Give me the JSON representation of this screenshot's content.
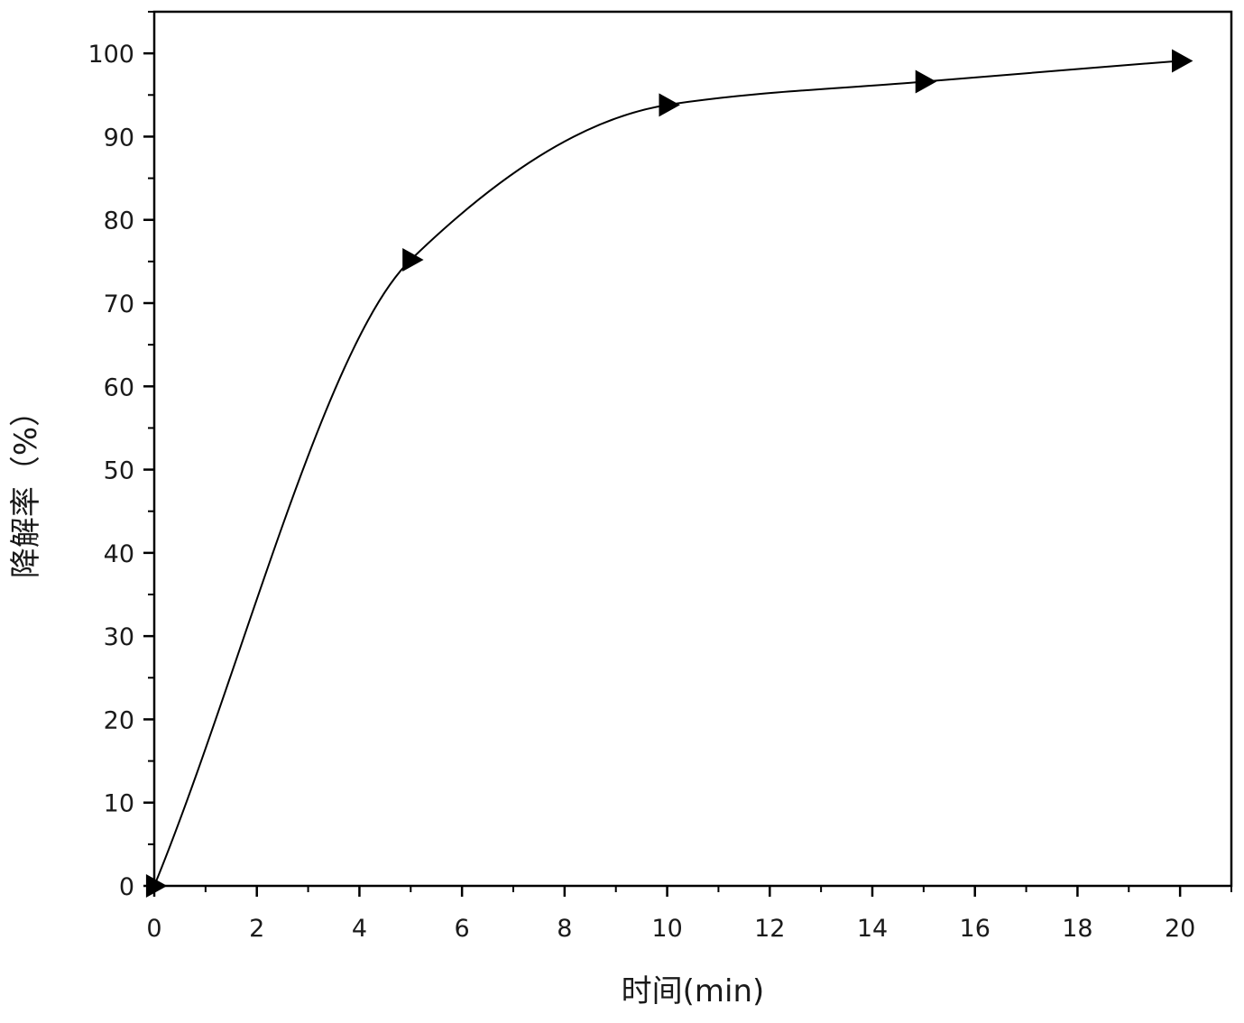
{
  "chart_data": {
    "type": "line",
    "title": "",
    "xlabel": "时间(min)",
    "ylabel": "降解率（%）",
    "xlim": [
      0,
      21
    ],
    "ylim": [
      0,
      105
    ],
    "x_ticks": [
      0,
      2,
      4,
      6,
      8,
      10,
      12,
      14,
      16,
      18,
      20
    ],
    "y_ticks": [
      0,
      10,
      20,
      30,
      40,
      50,
      60,
      70,
      80,
      90,
      100
    ],
    "x_tick_labels": [
      "0",
      "2",
      "4",
      "6",
      "8",
      "10",
      "12",
      "14",
      "16",
      "18",
      "20"
    ],
    "y_tick_labels": [
      "0",
      "10",
      "20",
      "30",
      "40",
      "50",
      "60",
      "70",
      "80",
      "90",
      "100"
    ],
    "grid": false,
    "legend": "none",
    "series": [
      {
        "marker": "right-triangle",
        "color": "#000000",
        "x": [
          0,
          5,
          10,
          15,
          20
        ],
        "y": [
          0,
          75.2,
          93.8,
          96.6,
          99.1
        ]
      }
    ]
  }
}
